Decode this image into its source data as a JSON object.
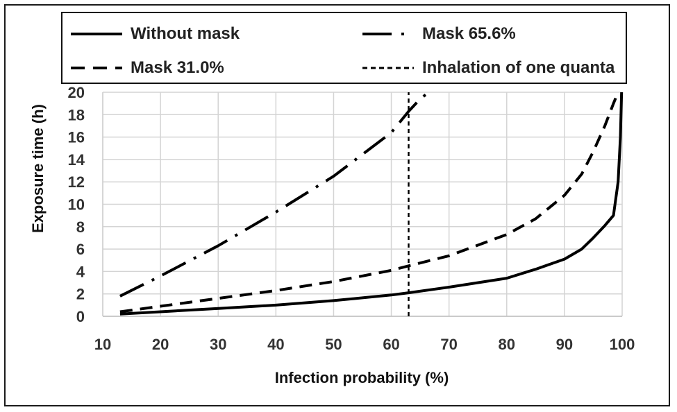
{
  "chart_data": {
    "type": "line",
    "xlabel": "Infection probability (%)",
    "ylabel": "Exposure time (h)",
    "xlim": [
      10,
      100
    ],
    "ylim": [
      0,
      20
    ],
    "xticks": [
      "10",
      "20",
      "30",
      "40",
      "50",
      "60",
      "70",
      "80",
      "90",
      "100"
    ],
    "yticks": [
      "0",
      "2",
      "4",
      "6",
      "8",
      "10",
      "12",
      "14",
      "16",
      "18",
      "20"
    ],
    "grid": true,
    "legend_position": "top",
    "series": [
      {
        "name": "Without mask",
        "style": "solid",
        "color": "#000000",
        "points": [
          [
            13,
            0.2
          ],
          [
            20,
            0.4
          ],
          [
            30,
            0.7
          ],
          [
            40,
            1.0
          ],
          [
            50,
            1.4
          ],
          [
            60,
            1.9
          ],
          [
            63,
            2.1
          ],
          [
            70,
            2.6
          ],
          [
            80,
            3.4
          ],
          [
            85,
            4.2
          ],
          [
            90,
            5.1
          ],
          [
            93,
            6.0
          ],
          [
            95,
            7.0
          ],
          [
            97,
            8.1
          ],
          [
            98.5,
            9.0
          ],
          [
            99.3,
            12.0
          ],
          [
            99.7,
            16.0
          ],
          [
            99.9,
            20.0
          ]
        ]
      },
      {
        "name": "Mask 65.6%",
        "style": "dash-dot",
        "color": "#000000",
        "points": [
          [
            13,
            1.8
          ],
          [
            20,
            3.6
          ],
          [
            30,
            6.3
          ],
          [
            40,
            9.3
          ],
          [
            50,
            12.5
          ],
          [
            60,
            16.4
          ],
          [
            63,
            18.3
          ],
          [
            65,
            19.4
          ],
          [
            67,
            20.2
          ]
        ]
      },
      {
        "name": "Mask 31.0%",
        "style": "dashed",
        "color": "#000000",
        "points": [
          [
            13,
            0.4
          ],
          [
            20,
            0.9
          ],
          [
            30,
            1.6
          ],
          [
            40,
            2.3
          ],
          [
            50,
            3.1
          ],
          [
            60,
            4.1
          ],
          [
            63,
            4.5
          ],
          [
            70,
            5.4
          ],
          [
            80,
            7.3
          ],
          [
            85,
            8.7
          ],
          [
            90,
            10.8
          ],
          [
            93,
            12.7
          ],
          [
            95,
            14.7
          ],
          [
            97,
            17.0
          ],
          [
            98.5,
            19.0
          ],
          [
            99.3,
            20.0
          ]
        ]
      },
      {
        "name": "Inhalation of one quanta",
        "style": "dotted",
        "color": "#000000",
        "points": [
          [
            63,
            0
          ],
          [
            63,
            20
          ]
        ]
      }
    ]
  }
}
